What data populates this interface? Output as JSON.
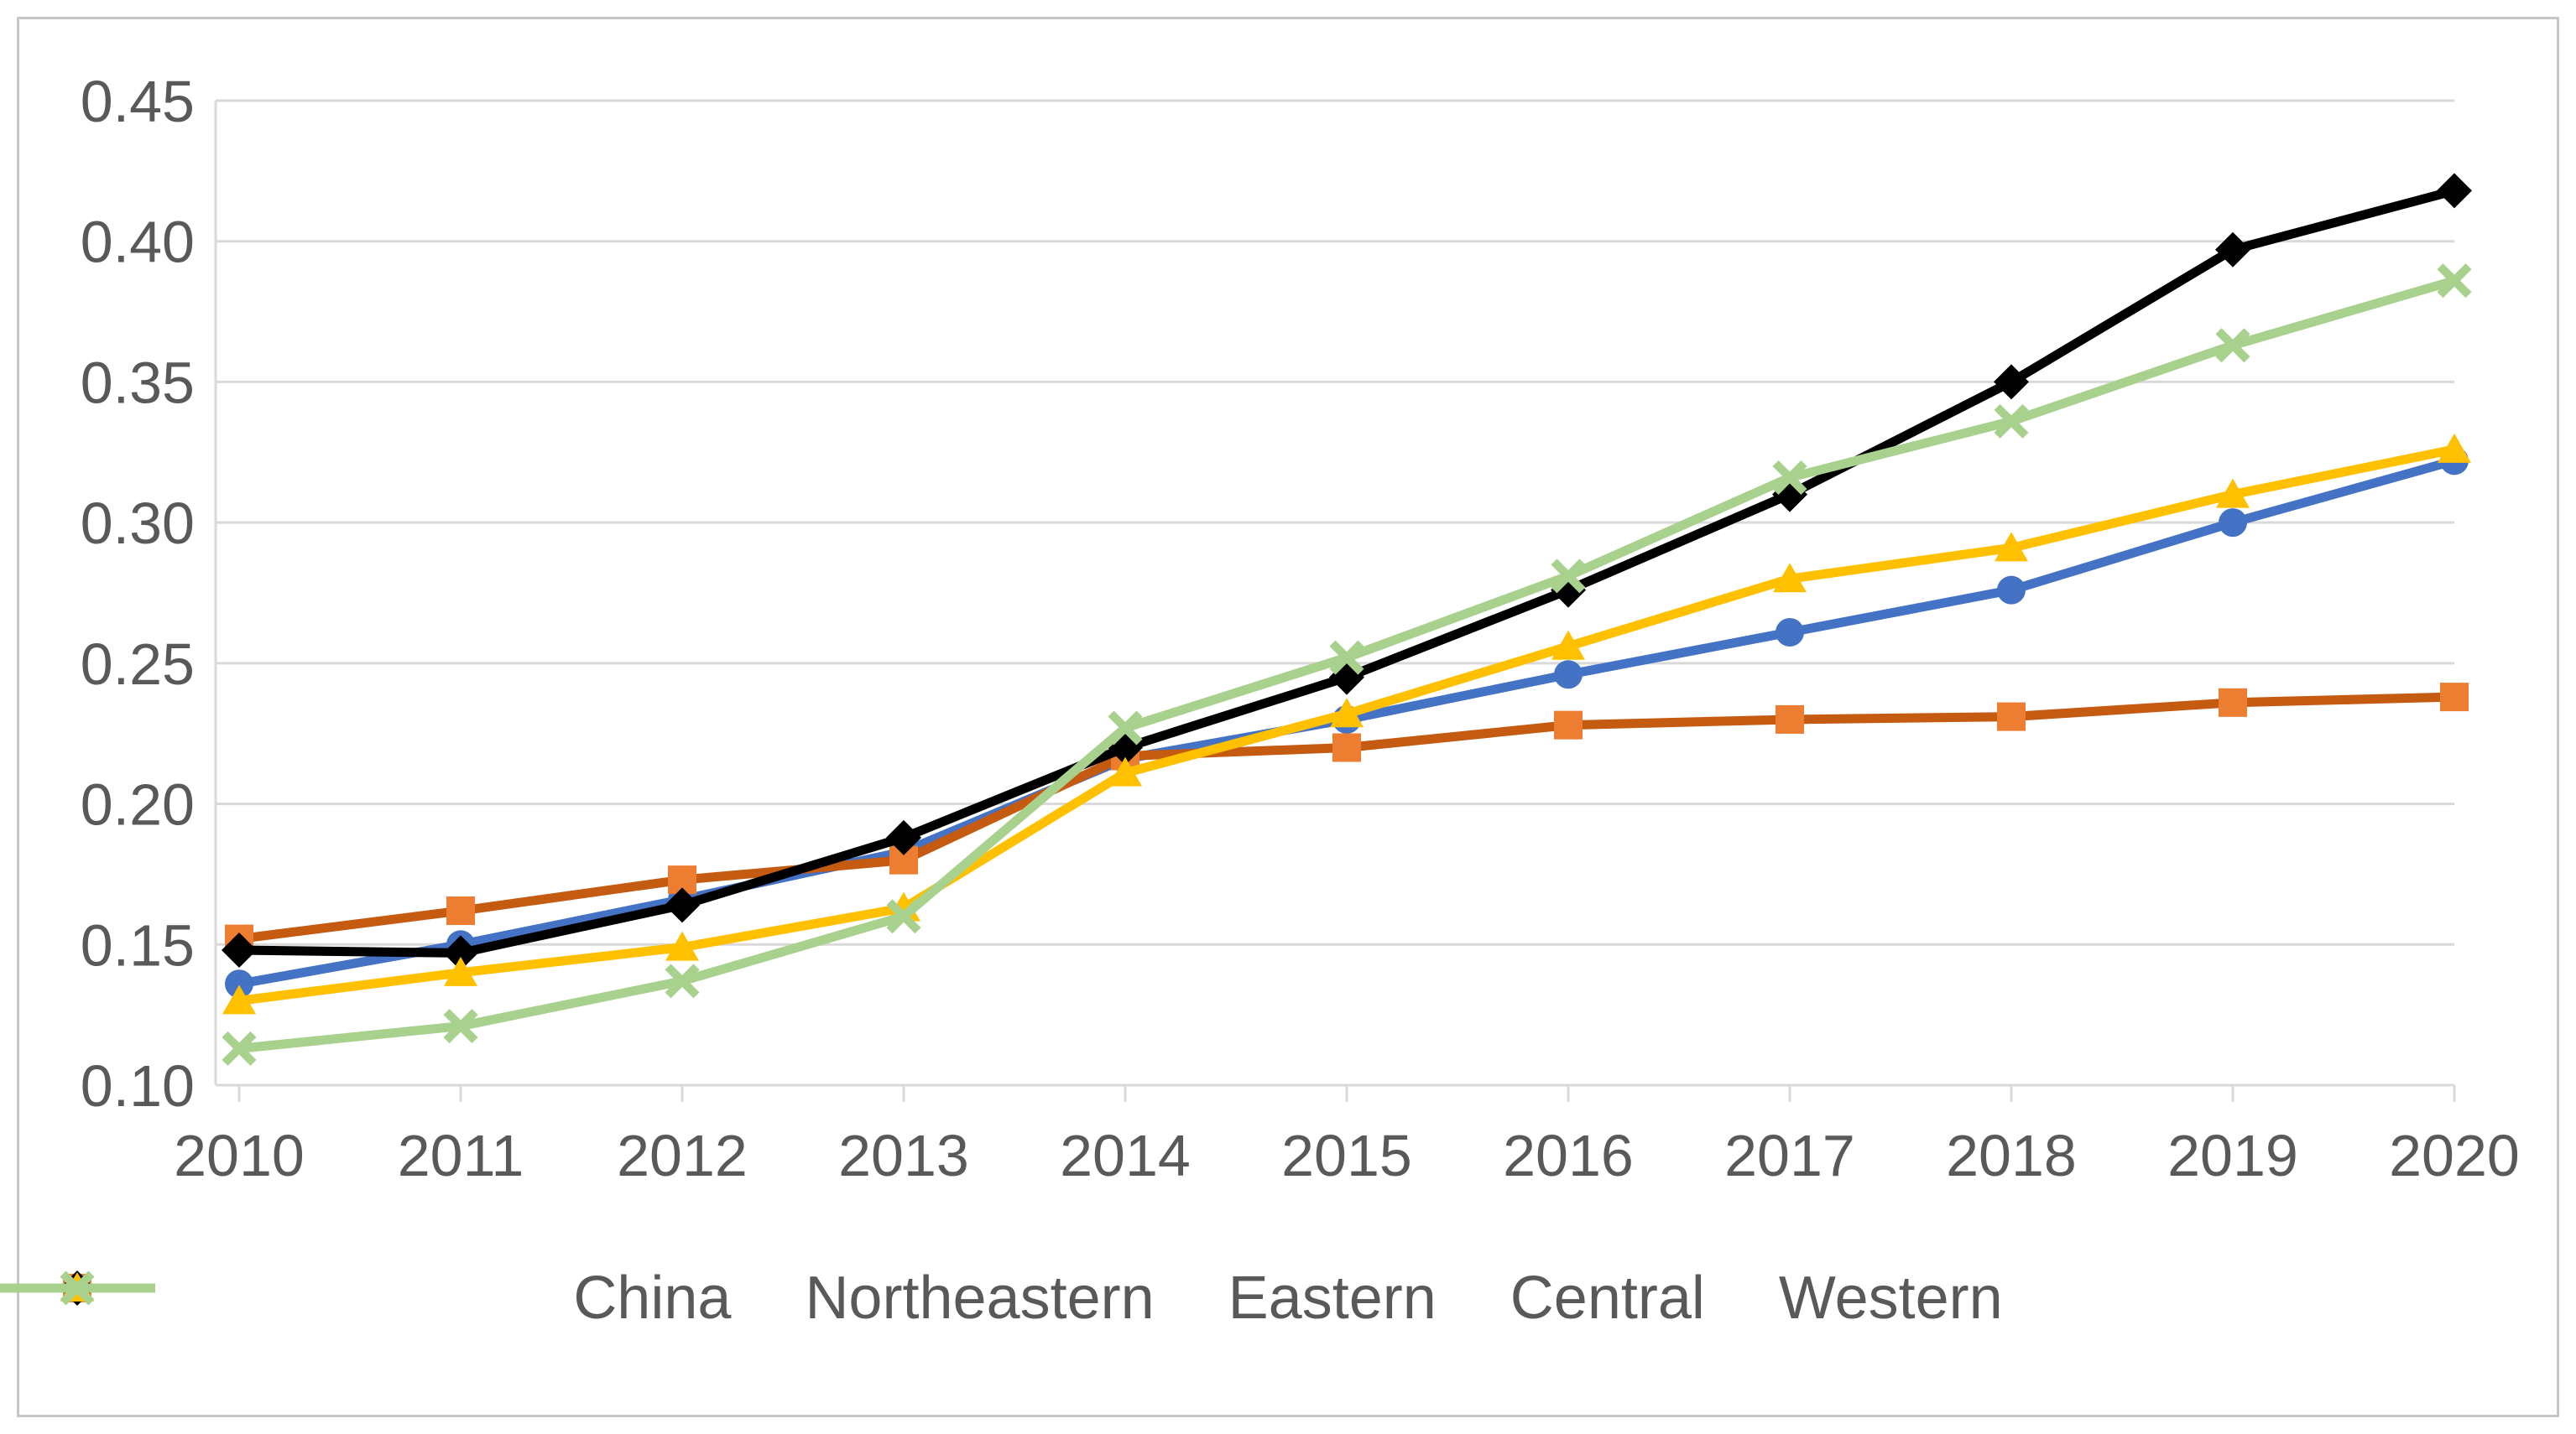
{
  "chart_data": {
    "type": "line",
    "title": "",
    "xlabel": "",
    "ylabel": "",
    "categories": [
      "2010",
      "2011",
      "2012",
      "2013",
      "2014",
      "2015",
      "2016",
      "2017",
      "2018",
      "2019",
      "2020"
    ],
    "series": [
      {
        "name": "China",
        "marker": "circle",
        "line_color": "#4472C4",
        "marker_color": "#4472C4",
        "values": [
          0.136,
          0.15,
          0.166,
          0.183,
          0.216,
          0.23,
          0.246,
          0.261,
          0.276,
          0.3,
          0.322
        ]
      },
      {
        "name": "Northeastern",
        "marker": "square",
        "line_color": "#C55A11",
        "marker_color": "#ED7D31",
        "values": [
          0.152,
          0.162,
          0.173,
          0.18,
          0.217,
          0.22,
          0.228,
          0.23,
          0.231,
          0.236,
          0.238
        ]
      },
      {
        "name": "Eastern",
        "marker": "diamond",
        "line_color": "#000000",
        "marker_color": "#000000",
        "values": [
          0.148,
          0.147,
          0.164,
          0.188,
          0.22,
          0.245,
          0.276,
          0.31,
          0.35,
          0.397,
          0.418
        ]
      },
      {
        "name": "Central",
        "marker": "triangle",
        "line_color": "#FFC000",
        "marker_color": "#FFC000",
        "values": [
          0.13,
          0.14,
          0.149,
          0.163,
          0.211,
          0.232,
          0.256,
          0.28,
          0.291,
          0.31,
          0.326
        ]
      },
      {
        "name": "Western",
        "marker": "x",
        "line_color": "#A9D18E",
        "marker_color": "#A9D18E",
        "values": [
          0.113,
          0.121,
          0.137,
          0.16,
          0.227,
          0.252,
          0.281,
          0.316,
          0.336,
          0.363,
          0.386
        ]
      }
    ],
    "y_tick_labels": [
      "0.10",
      "0.15",
      "0.20",
      "0.25",
      "0.30",
      "0.35",
      "0.40",
      "0.45"
    ],
    "ylim": [
      0.1,
      0.45
    ],
    "grid": true,
    "legend_position": "bottom",
    "style": {
      "grid_color": "#D9D9D9",
      "axis_color": "#D9D9D9",
      "tick_label_color": "#595959",
      "legend_text_color": "#595959",
      "frame_color": "#C6C6C6",
      "background": "#FFFFFF"
    }
  }
}
